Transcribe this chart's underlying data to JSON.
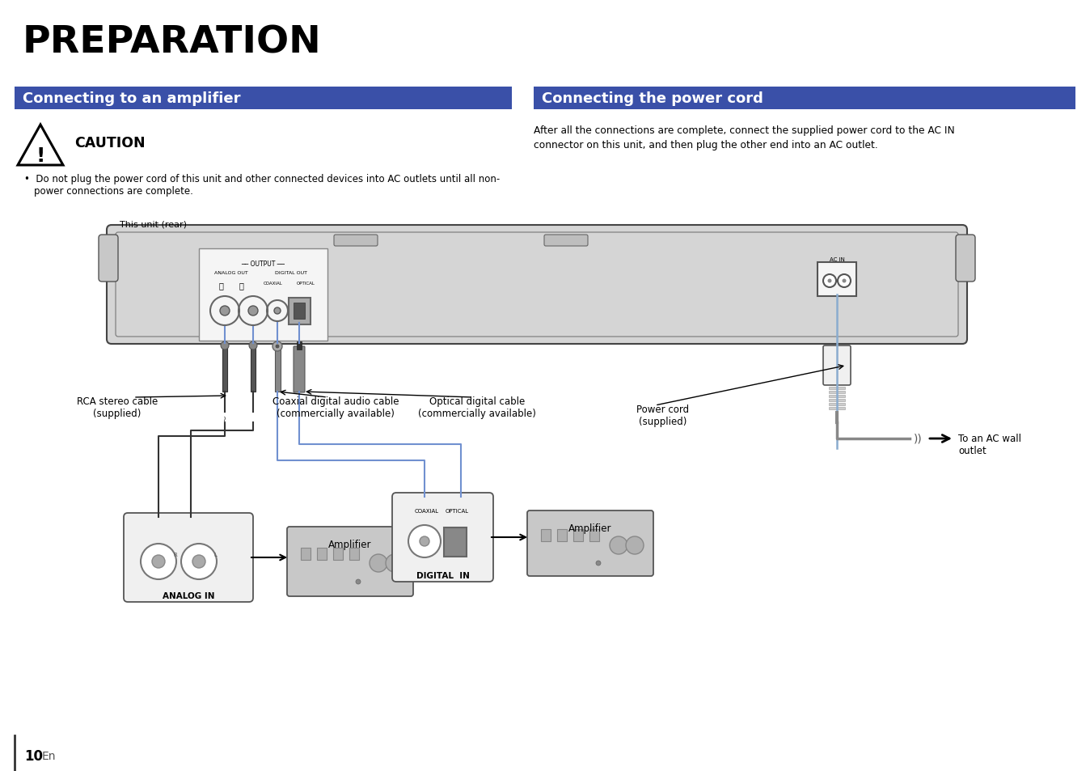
{
  "bg_color": "#ffffff",
  "title": "PREPARATION",
  "title_fontsize": 34,
  "section1_title": "Connecting to an amplifier",
  "section2_title": "Connecting the power cord",
  "section_header_bg": "#3a50a8",
  "section_header_color": "#ffffff",
  "section_header_fontsize": 13,
  "caution_title": "CAUTION",
  "caution_text": "Do not plug the power cord of this unit and other connected devices into AC outlets until all non-\npower connections are complete.",
  "power_cord_text": "After all the connections are complete, connect the supplied power cord to the AC IN\nconnector on this unit, and then plug the other end into an AC outlet.",
  "page_number": "10",
  "page_lang": "En",
  "label_rca": "RCA stereo cable\n(supplied)",
  "label_coaxial": "Coaxial digital audio cable\n(commercially available)",
  "label_optical": "Optical digital cable\n(commercially available)",
  "label_power": "Power cord\n(supplied)",
  "label_ac_wall": "To an AC wall\noutlet",
  "label_amplifier1": "Amplifier",
  "label_amplifier2": "Amplifier",
  "label_analog_in": "ANALOG IN",
  "label_digital_in": "DIGITAL  IN",
  "label_this_unit": "This unit (rear)",
  "cable_color": "#7090d0",
  "power_cable_color": "#8aaccf",
  "device_outline": "#555555",
  "device_fill": "#d5d5d5",
  "connector_panel_fill": "#f0f0f0",
  "amplifier_fill": "#c8c8c8"
}
